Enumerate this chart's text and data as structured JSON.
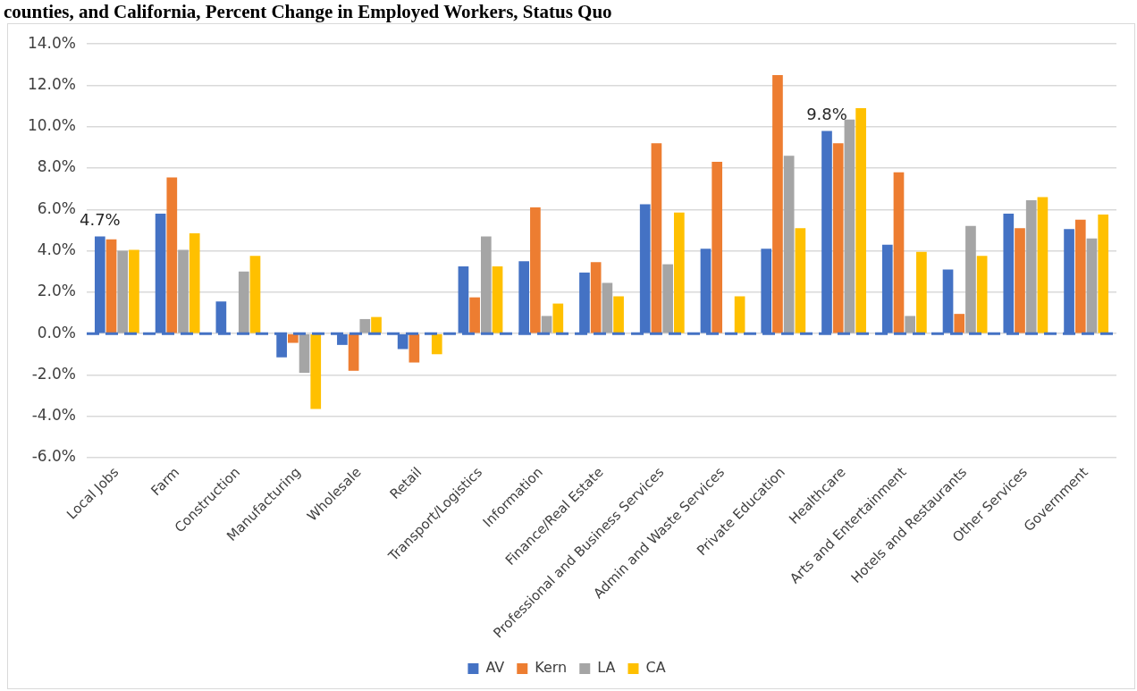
{
  "chart_data": {
    "type": "bar",
    "title": "counties, and California, Percent Change in Employed Workers, Status Quo",
    "categories": [
      "Local Jobs",
      "Farm",
      "Construction",
      "Manufacturing",
      "Wholesale",
      "Retail",
      "Transport/Logistics",
      "Information",
      "Finance/Real Estate",
      "Professional and Business Services",
      "Admin and Waste Services",
      "Private Education",
      "Healthcare",
      "Arts and Entertainment",
      "Hotels and Restaurants",
      "Other Services",
      "Government"
    ],
    "series": [
      {
        "name": "AV",
        "color": "#4472c4",
        "values": [
          4.7,
          5.8,
          1.55,
          -1.15,
          -0.55,
          -0.75,
          3.25,
          3.5,
          2.95,
          6.25,
          4.1,
          4.1,
          9.8,
          4.3,
          3.1,
          5.8,
          5.05
        ]
      },
      {
        "name": "Kern",
        "color": "#ed7d31",
        "values": [
          4.55,
          7.55,
          null,
          -0.45,
          -1.8,
          -1.4,
          1.75,
          6.1,
          3.45,
          9.2,
          8.3,
          12.5,
          9.2,
          7.8,
          0.95,
          5.1,
          5.5
        ]
      },
      {
        "name": "LA",
        "color": "#a5a5a5",
        "values": [
          4.0,
          4.05,
          3.0,
          -1.9,
          0.7,
          null,
          4.7,
          0.85,
          2.45,
          3.35,
          null,
          8.6,
          10.35,
          0.85,
          5.2,
          6.45,
          4.6
        ]
      },
      {
        "name": "CA",
        "color": "#ffc000",
        "values": [
          4.05,
          4.85,
          3.75,
          -3.65,
          0.8,
          -1.0,
          3.25,
          1.45,
          1.8,
          5.85,
          1.8,
          5.1,
          10.9,
          3.95,
          3.75,
          6.6,
          5.75
        ]
      }
    ],
    "ylim": [
      -6,
      14
    ],
    "yticks": [
      {
        "value": -6,
        "label": "-6.0%"
      },
      {
        "value": -4,
        "label": "-4.0%"
      },
      {
        "value": -2,
        "label": "-2.0%"
      },
      {
        "value": 0,
        "label": "0.0%"
      },
      {
        "value": 2,
        "label": "2.0%"
      },
      {
        "value": 4,
        "label": "4.0%"
      },
      {
        "value": 6,
        "label": "6.0%"
      },
      {
        "value": 8,
        "label": "8.0%"
      },
      {
        "value": 10,
        "label": "10.0%"
      },
      {
        "value": 12,
        "label": "12.0%"
      },
      {
        "value": 14,
        "label": "14.0%"
      }
    ],
    "grid": "y",
    "legend": "bottom",
    "ref_lines": [
      {
        "axis": "y",
        "value": 0,
        "label": null,
        "color": "#4472c4",
        "line_style": "dashed"
      }
    ],
    "annotations": [
      {
        "text": "4.7%",
        "x": "Local Jobs",
        "y": 4.7
      },
      {
        "text": "9.8%",
        "x": "Healthcare",
        "y": 9.8
      }
    ]
  }
}
